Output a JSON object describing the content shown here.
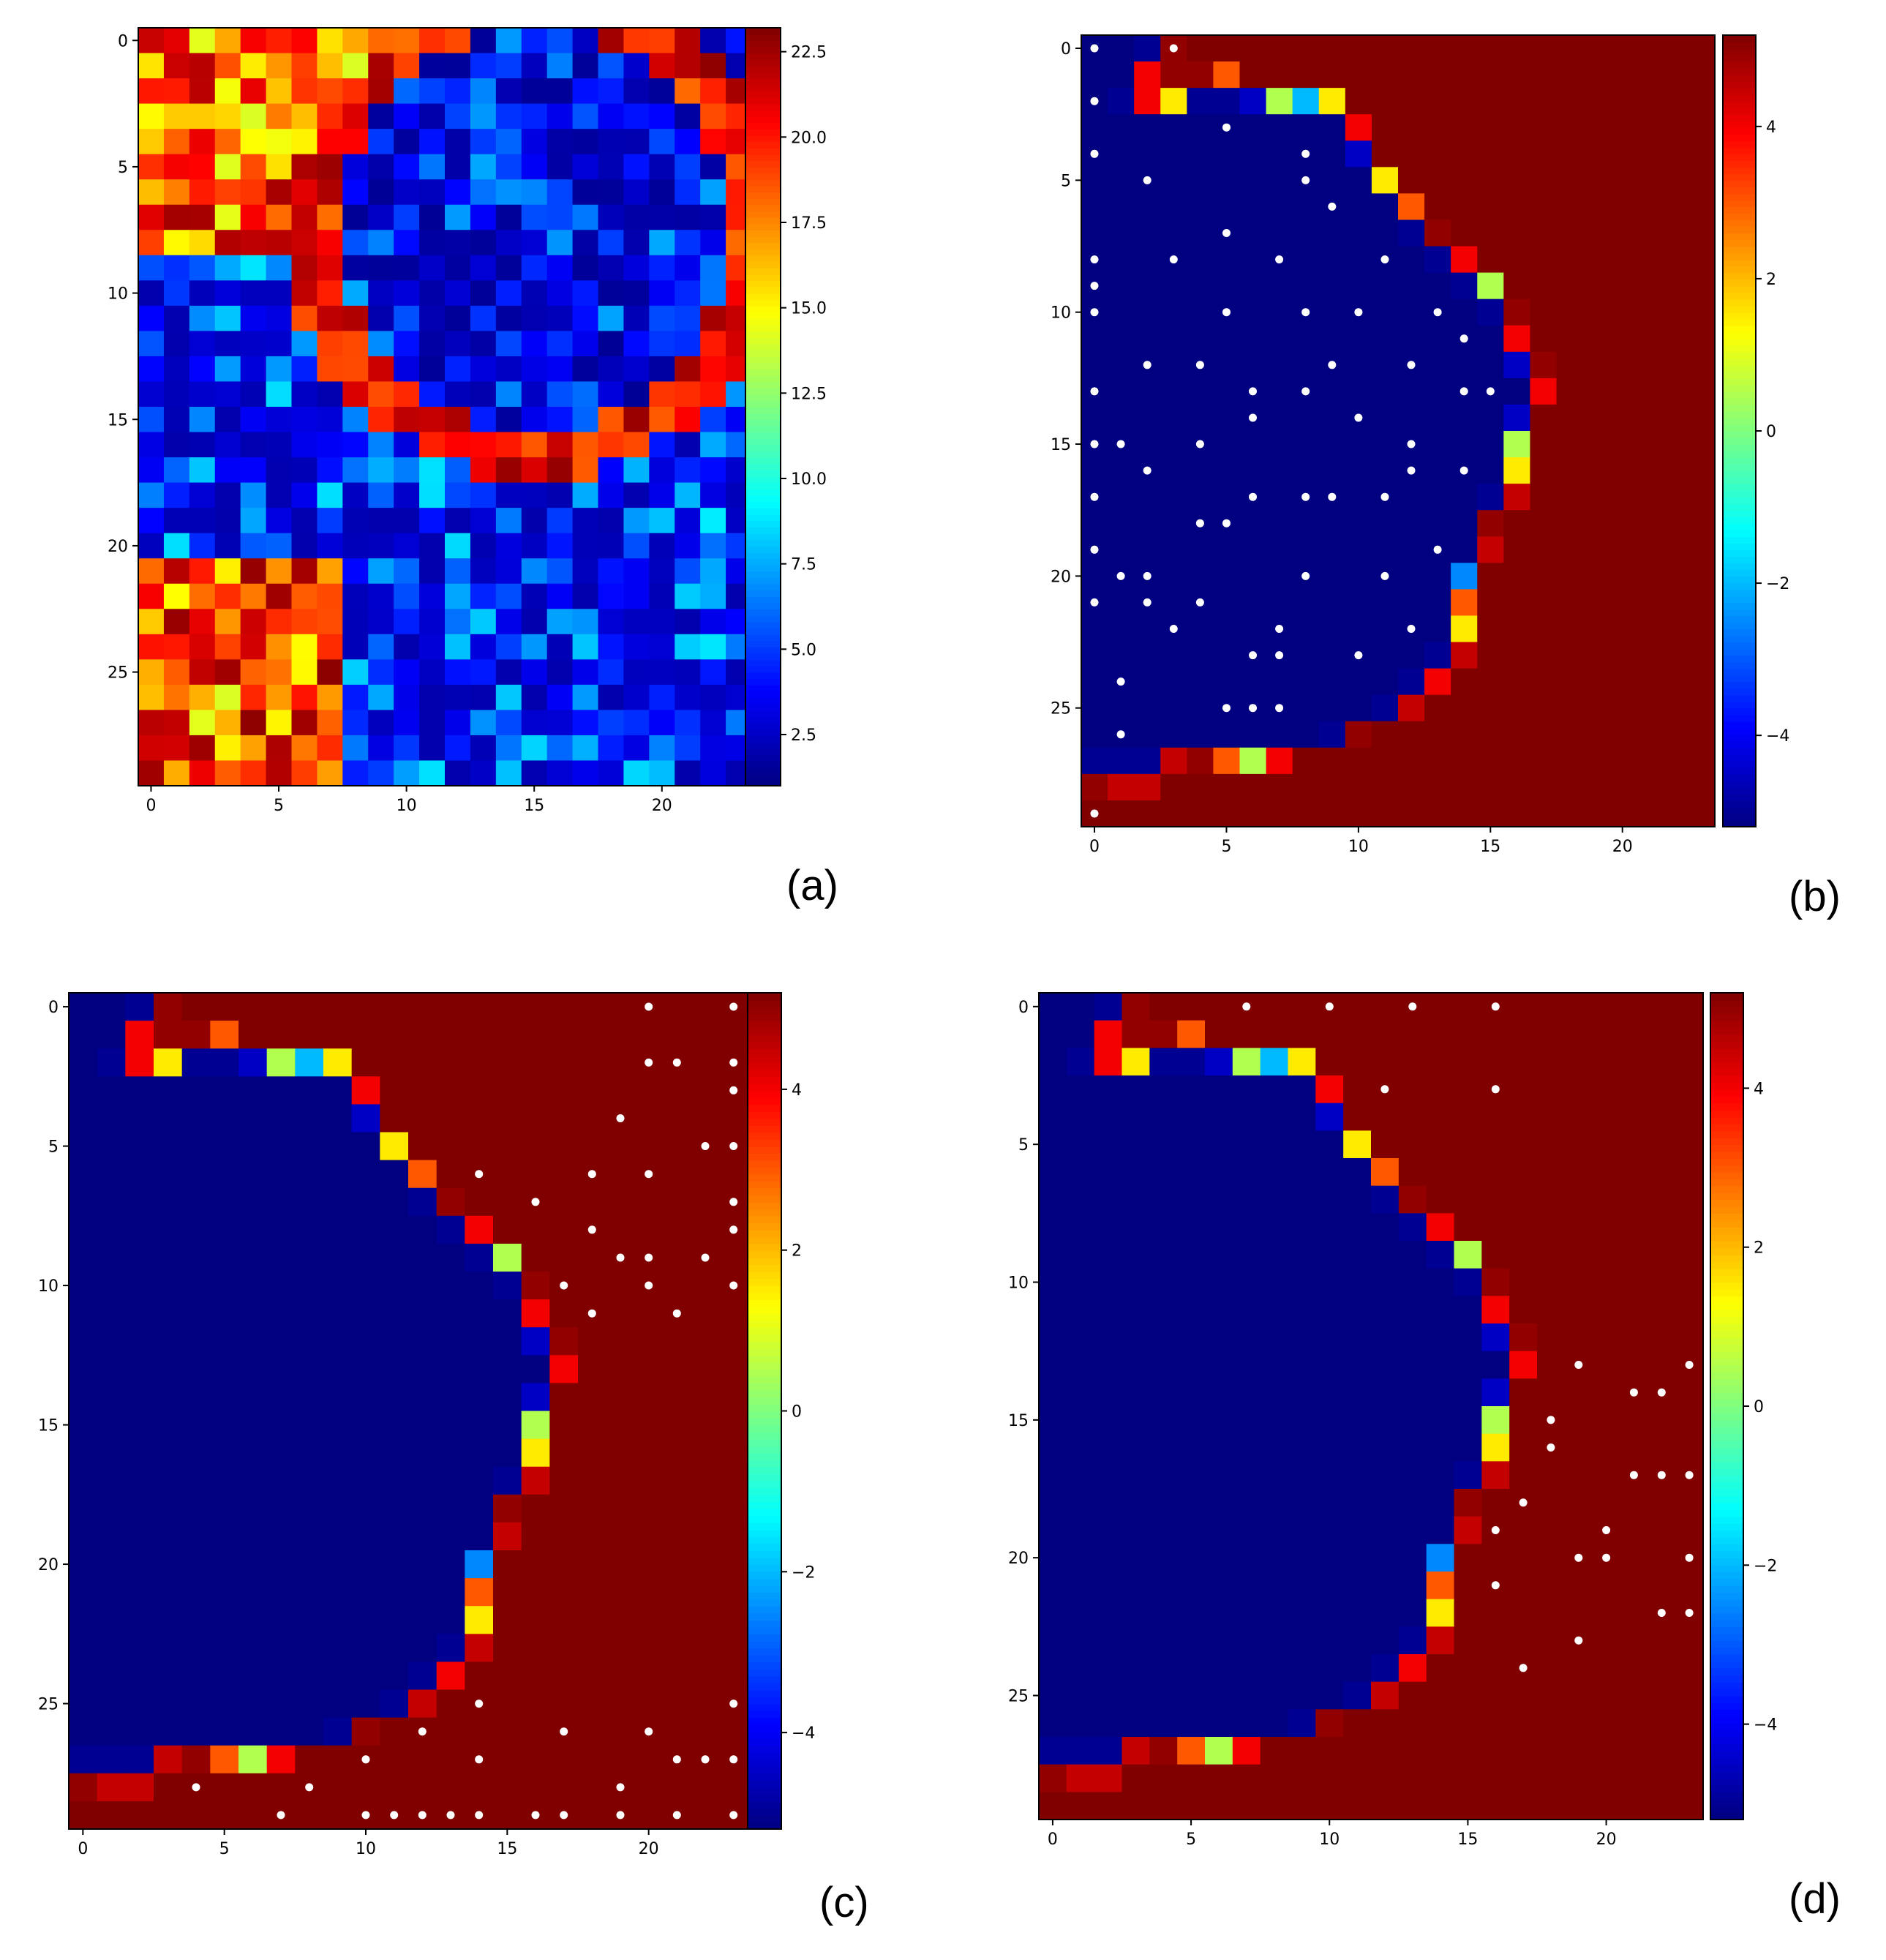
{
  "figure": {
    "panel_labels": [
      "(a)",
      "(b)",
      "(c)",
      "(d)"
    ]
  },
  "chart_data": [
    {
      "type": "heatmap",
      "panel": "(a)",
      "title": "",
      "xlabel": "",
      "ylabel": "",
      "rows": 30,
      "cols": 24,
      "colormap": "jet",
      "vmin": 1,
      "vmax": 23.2,
      "xticks": [
        0,
        5,
        10,
        15,
        20
      ],
      "yticks": [
        0,
        5,
        10,
        15,
        20,
        25
      ],
      "colorbar_ticks": [
        2.5,
        5.0,
        7.5,
        10.0,
        12.5,
        15.0,
        17.5,
        20.0,
        22.5
      ],
      "colorbar_tick_labels": [
        "2.5",
        "5.0",
        "7.5",
        "10.0",
        "12.5",
        "15.0",
        "17.5",
        "20.0",
        "22.5"
      ],
      "ring": {
        "center": [
          15,
          7.5
        ],
        "radius": 8.8,
        "width": 1.0
      },
      "values_description": "noisy field: high values (~20-23) along a circular arc and in the upper-left and lower-left corners, low values (~1-8) elsewhere",
      "markers": []
    },
    {
      "type": "heatmap",
      "panel": "(b)",
      "title": "",
      "xlabel": "",
      "ylabel": "",
      "rows": 30,
      "cols": 24,
      "colormap": "jet",
      "vmin": -5.2,
      "vmax": 5.2,
      "xticks": [
        0,
        5,
        10,
        15,
        20
      ],
      "yticks": [
        0,
        5,
        10,
        15,
        20,
        25
      ],
      "colorbar_ticks": [
        -4,
        -2,
        0,
        2,
        4
      ],
      "colorbar_tick_labels": [
        "−4",
        "−2",
        "0",
        "2",
        "4"
      ],
      "inside_value": -5.2,
      "outside_value": 5.2,
      "boundary_cells": [
        [
          0,
          2,
          -5
        ],
        [
          0,
          3,
          5
        ],
        [
          1,
          2,
          4
        ],
        [
          1,
          3,
          5
        ],
        [
          1,
          4,
          5
        ],
        [
          1,
          5,
          3
        ],
        [
          2,
          1,
          -5
        ],
        [
          2,
          2,
          4
        ],
        [
          2,
          3,
          1.5
        ],
        [
          2,
          4,
          -5
        ],
        [
          2,
          5,
          -5
        ],
        [
          2,
          6,
          -4.5
        ],
        [
          2,
          7,
          0.5
        ],
        [
          2,
          8,
          -2
        ],
        [
          2,
          9,
          1.5
        ],
        [
          3,
          10,
          4
        ],
        [
          4,
          10,
          -4.5
        ],
        [
          5,
          11,
          1.5
        ],
        [
          6,
          12,
          3
        ],
        [
          7,
          12,
          -5
        ],
        [
          7,
          13,
          5
        ],
        [
          8,
          13,
          -5
        ],
        [
          8,
          14,
          4
        ],
        [
          9,
          14,
          -5
        ],
        [
          9,
          15,
          0.5
        ],
        [
          10,
          15,
          -5
        ],
        [
          10,
          16,
          5
        ],
        [
          11,
          16,
          4
        ],
        [
          12,
          16,
          -4.5
        ],
        [
          12,
          17,
          5
        ],
        [
          13,
          17,
          4
        ],
        [
          14,
          16,
          -4.5
        ],
        [
          15,
          16,
          0.5
        ],
        [
          16,
          16,
          1.5
        ],
        [
          17,
          15,
          -5
        ],
        [
          17,
          16,
          4.5
        ],
        [
          18,
          15,
          5
        ],
        [
          19,
          15,
          4.5
        ],
        [
          20,
          14,
          -2.5
        ],
        [
          21,
          14,
          3
        ],
        [
          22,
          14,
          1.5
        ],
        [
          23,
          13,
          -5
        ],
        [
          23,
          14,
          4.5
        ],
        [
          24,
          12,
          -5
        ],
        [
          24,
          13,
          4
        ],
        [
          25,
          11,
          -5
        ],
        [
          25,
          12,
          4.5
        ],
        [
          26,
          9,
          -5
        ],
        [
          26,
          10,
          5
        ],
        [
          27,
          0,
          -5
        ],
        [
          27,
          1,
          -5
        ],
        [
          27,
          2,
          -5
        ],
        [
          27,
          3,
          4.5
        ],
        [
          27,
          4,
          5
        ],
        [
          27,
          5,
          3
        ],
        [
          27,
          6,
          0.5
        ],
        [
          27,
          7,
          4
        ],
        [
          28,
          0,
          5
        ],
        [
          28,
          1,
          4.5
        ],
        [
          28,
          2,
          4.5
        ]
      ],
      "markers": [
        [
          0,
          0
        ],
        [
          0,
          3
        ],
        [
          2,
          0
        ],
        [
          3,
          5
        ],
        [
          4,
          0
        ],
        [
          4,
          8
        ],
        [
          5,
          2
        ],
        [
          5,
          8
        ],
        [
          6,
          9
        ],
        [
          7,
          5
        ],
        [
          8,
          0
        ],
        [
          8,
          3
        ],
        [
          8,
          7
        ],
        [
          8,
          11
        ],
        [
          9,
          0
        ],
        [
          10,
          0
        ],
        [
          10,
          5
        ],
        [
          10,
          8
        ],
        [
          10,
          10
        ],
        [
          10,
          13
        ],
        [
          11,
          14
        ],
        [
          12,
          2
        ],
        [
          12,
          4
        ],
        [
          12,
          9
        ],
        [
          12,
          12
        ],
        [
          13,
          0
        ],
        [
          13,
          6
        ],
        [
          13,
          8
        ],
        [
          13,
          14
        ],
        [
          13,
          15
        ],
        [
          14,
          6
        ],
        [
          14,
          10
        ],
        [
          15,
          0
        ],
        [
          15,
          1
        ],
        [
          15,
          4
        ],
        [
          15,
          12
        ],
        [
          16,
          2
        ],
        [
          16,
          12
        ],
        [
          16,
          14
        ],
        [
          17,
          0
        ],
        [
          17,
          6
        ],
        [
          17,
          8
        ],
        [
          17,
          9
        ],
        [
          17,
          11
        ],
        [
          18,
          4
        ],
        [
          18,
          5
        ],
        [
          19,
          0
        ],
        [
          19,
          13
        ],
        [
          20,
          1
        ],
        [
          20,
          2
        ],
        [
          20,
          8
        ],
        [
          20,
          11
        ],
        [
          21,
          0
        ],
        [
          21,
          2
        ],
        [
          21,
          4
        ],
        [
          22,
          3
        ],
        [
          22,
          7
        ],
        [
          22,
          12
        ],
        [
          23,
          6
        ],
        [
          23,
          7
        ],
        [
          23,
          10
        ],
        [
          24,
          1
        ],
        [
          25,
          5
        ],
        [
          25,
          6
        ],
        [
          25,
          7
        ],
        [
          26,
          1
        ],
        [
          29,
          0
        ]
      ]
    },
    {
      "type": "heatmap",
      "panel": "(c)",
      "title": "",
      "xlabel": "",
      "ylabel": "",
      "rows": 30,
      "cols": 24,
      "colormap": "jet",
      "vmin": -5.2,
      "vmax": 5.2,
      "xticks": [
        0,
        5,
        10,
        15,
        20
      ],
      "yticks": [
        0,
        5,
        10,
        15,
        20,
        25
      ],
      "colorbar_ticks": [
        -4,
        -2,
        0,
        2,
        4
      ],
      "colorbar_tick_labels": [
        "−4",
        "−2",
        "0",
        "2",
        "4"
      ],
      "inside_value": -5.2,
      "outside_value": 5.2,
      "boundary_cells": "same as (b)",
      "markers": [
        [
          0,
          20
        ],
        [
          0,
          23
        ],
        [
          2,
          20
        ],
        [
          2,
          21
        ],
        [
          2,
          23
        ],
        [
          3,
          23
        ],
        [
          4,
          19
        ],
        [
          5,
          22
        ],
        [
          5,
          23
        ],
        [
          6,
          14
        ],
        [
          6,
          18
        ],
        [
          6,
          20
        ],
        [
          7,
          16
        ],
        [
          7,
          23
        ],
        [
          8,
          18
        ],
        [
          8,
          23
        ],
        [
          9,
          19
        ],
        [
          9,
          20
        ],
        [
          9,
          22
        ],
        [
          10,
          17
        ],
        [
          10,
          20
        ],
        [
          10,
          23
        ],
        [
          11,
          18
        ],
        [
          11,
          21
        ],
        [
          25,
          14
        ],
        [
          25,
          23
        ],
        [
          26,
          12
        ],
        [
          26,
          17
        ],
        [
          26,
          20
        ],
        [
          27,
          10
        ],
        [
          27,
          14
        ],
        [
          27,
          21
        ],
        [
          27,
          22
        ],
        [
          27,
          23
        ],
        [
          28,
          4
        ],
        [
          28,
          8
        ],
        [
          28,
          19
        ],
        [
          29,
          7
        ],
        [
          29,
          10
        ],
        [
          29,
          11
        ],
        [
          29,
          12
        ],
        [
          29,
          13
        ],
        [
          29,
          14
        ],
        [
          29,
          16
        ],
        [
          29,
          17
        ],
        [
          29,
          19
        ],
        [
          29,
          21
        ],
        [
          29,
          23
        ]
      ]
    },
    {
      "type": "heatmap",
      "panel": "(d)",
      "title": "",
      "xlabel": "",
      "ylabel": "",
      "rows": 30,
      "cols": 24,
      "colormap": "jet",
      "vmin": -5.2,
      "vmax": 5.2,
      "xticks": [
        0,
        5,
        10,
        15,
        20
      ],
      "yticks": [
        0,
        5,
        10,
        15,
        20,
        25
      ],
      "colorbar_ticks": [
        -4,
        -2,
        0,
        2,
        4
      ],
      "colorbar_tick_labels": [
        "−4",
        "−2",
        "0",
        "2",
        "4"
      ],
      "inside_value": -5.2,
      "outside_value": 5.2,
      "boundary_cells": "same as (b)",
      "markers": [
        [
          0,
          7
        ],
        [
          0,
          10
        ],
        [
          0,
          13
        ],
        [
          0,
          16
        ],
        [
          3,
          12
        ],
        [
          3,
          16
        ],
        [
          13,
          19
        ],
        [
          13,
          23
        ],
        [
          14,
          21
        ],
        [
          14,
          22
        ],
        [
          15,
          18
        ],
        [
          16,
          18
        ],
        [
          17,
          21
        ],
        [
          17,
          22
        ],
        [
          17,
          23
        ],
        [
          18,
          17
        ],
        [
          19,
          16
        ],
        [
          19,
          20
        ],
        [
          20,
          19
        ],
        [
          20,
          20
        ],
        [
          20,
          23
        ],
        [
          21,
          16
        ],
        [
          22,
          22
        ],
        [
          22,
          23
        ],
        [
          23,
          19
        ],
        [
          24,
          17
        ]
      ]
    }
  ]
}
